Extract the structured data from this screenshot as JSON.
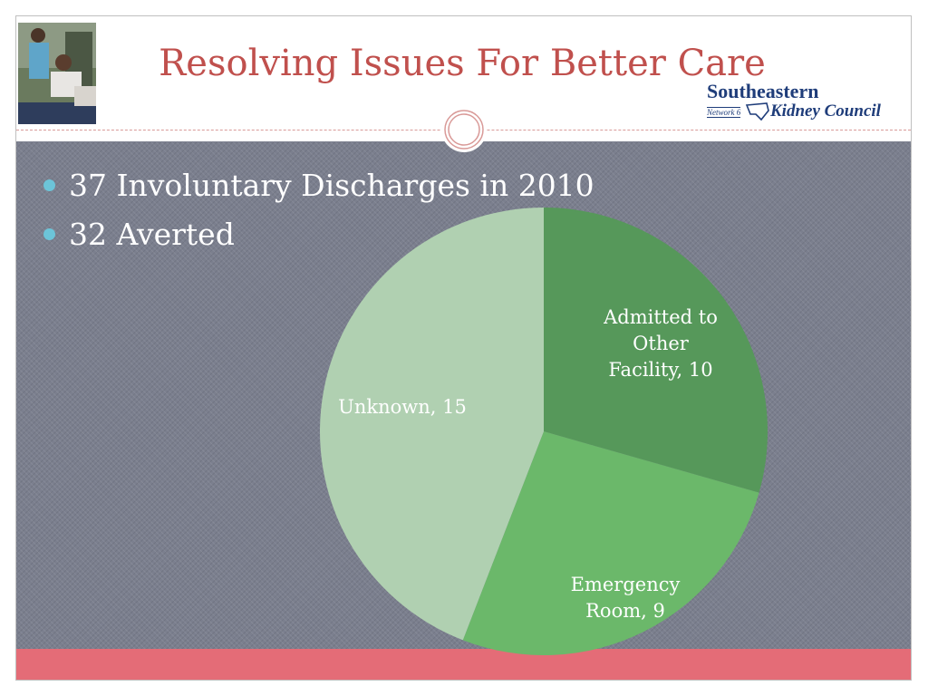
{
  "slide": {
    "title": "Resolving Issues For Better Care",
    "colors": {
      "title": "#c0504d",
      "bar": "#e46c77",
      "background": "#7b7f8e",
      "bullet": "#6cc4d8"
    }
  },
  "logo": {
    "line1": "Southeastern",
    "network": "Network 6",
    "line2": "Kidney Council"
  },
  "photo": {
    "icon": "dialysis-photo"
  },
  "bullets": [
    "37 Involuntary Discharges in 2010",
    "32 Averted"
  ],
  "chart_data": {
    "type": "pie",
    "title": "",
    "slices": [
      {
        "name": "Admitted to Other Facility",
        "value": 10,
        "color": "#56985a",
        "label_lines": [
          "Admitted to",
          "Other",
          "Facility, 10"
        ]
      },
      {
        "name": "Emergency Room",
        "value": 9,
        "color": "#6bb86a",
        "label_lines": [
          "Emergency",
          "Room, 9"
        ]
      },
      {
        "name": "Unknown",
        "value": 15,
        "color": "#b0d0b1",
        "label_lines": [
          "Unknown, 15"
        ]
      }
    ],
    "legend": "none"
  }
}
